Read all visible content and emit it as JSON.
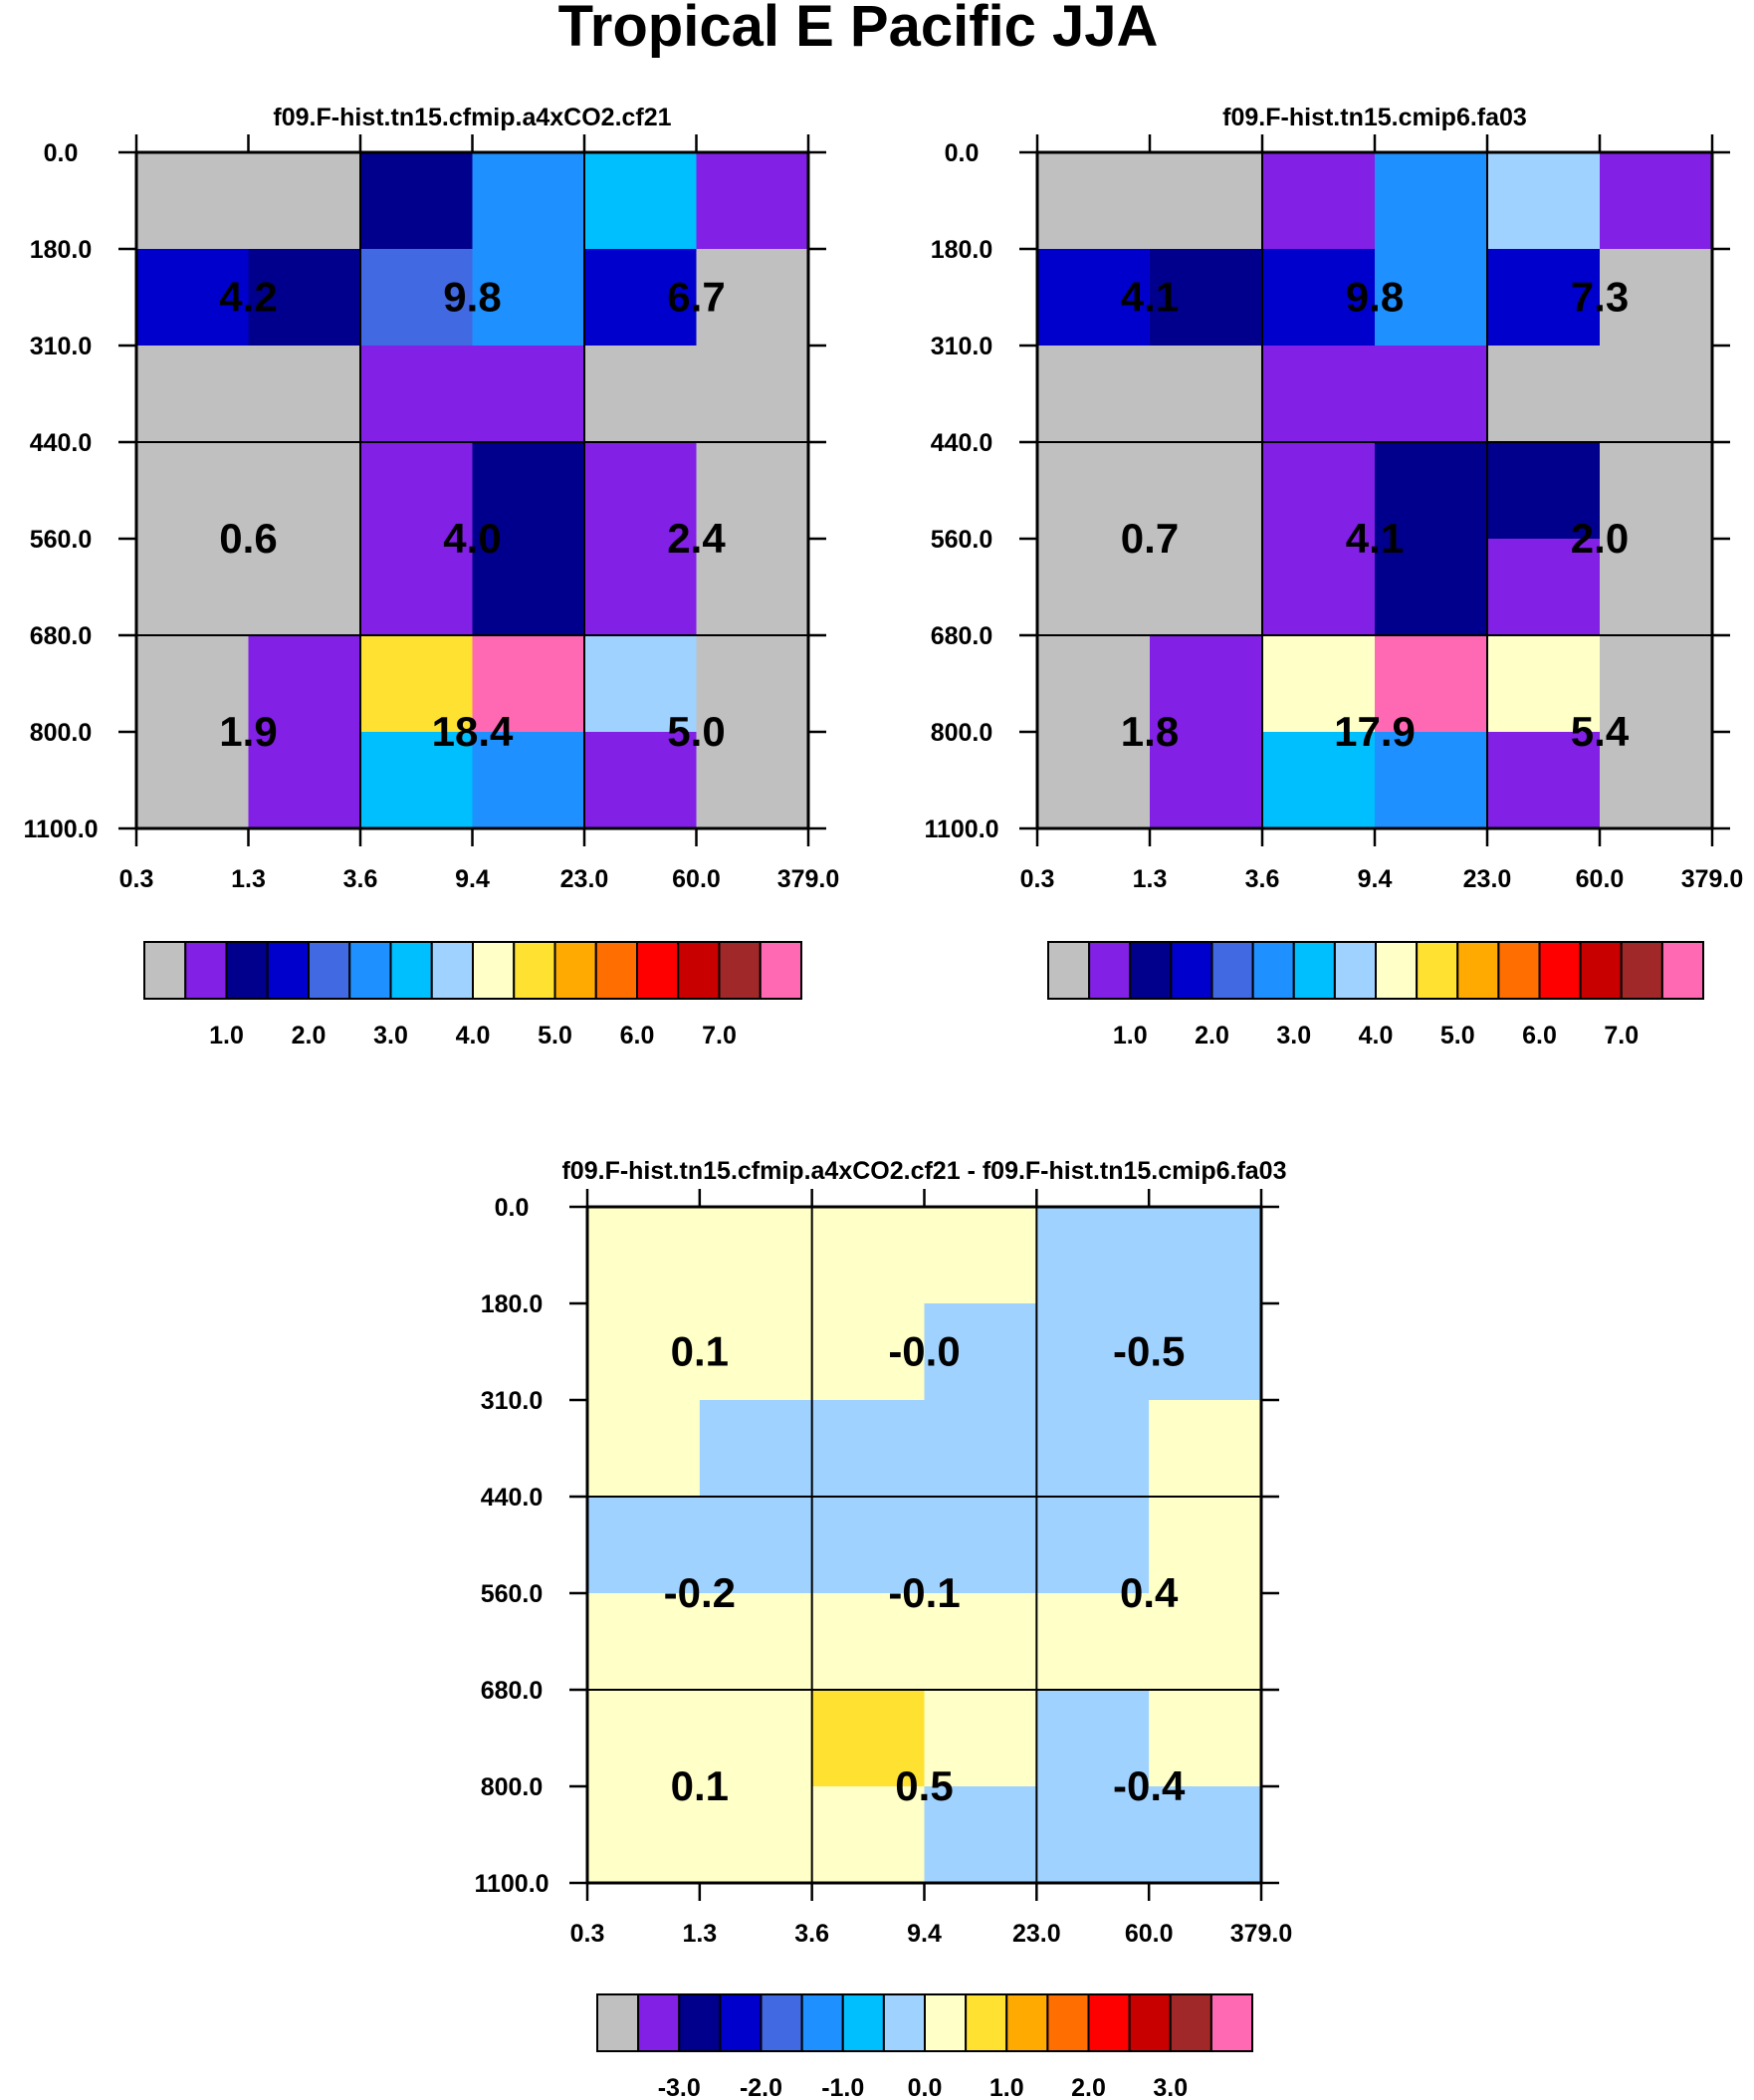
{
  "title": "Tropical E Pacific JJA",
  "colors": {
    "palette": [
      "#c0c0c0",
      "#8220e6",
      "#00008c",
      "#0000cd",
      "#4169e1",
      "#1e90ff",
      "#00bfff",
      "#a0d2ff",
      "#ffffc8",
      "#ffe132",
      "#ffaa00",
      "#ff6e00",
      "#ff0000",
      "#c80000",
      "#a02828",
      "#ff69b4"
    ]
  },
  "chart_data": [
    {
      "type": "heatmap",
      "title": "f09.F-hist.tn15.cfmip.a4xCO2.cf21",
      "xticks": [
        "0.3",
        "1.3",
        "3.6",
        "9.4",
        "23.0",
        "60.0",
        "379.0"
      ],
      "yticks": [
        "0.0",
        "180.0",
        "310.0",
        "440.0",
        "560.0",
        "680.0",
        "800.0",
        "1100.0"
      ],
      "cells": [
        [
          0,
          0,
          2,
          5,
          6,
          1
        ],
        [
          3,
          2,
          4,
          5,
          3,
          0
        ],
        [
          0,
          0,
          1,
          1,
          0,
          0
        ],
        [
          0,
          0,
          1,
          2,
          1,
          0
        ],
        [
          0,
          0,
          1,
          2,
          1,
          0
        ],
        [
          0,
          1,
          9,
          15,
          7,
          0
        ],
        [
          0,
          1,
          6,
          5,
          1,
          0
        ]
      ],
      "box_labels": [
        "4.2",
        "9.8",
        "6.7",
        "0.6",
        "4.0",
        "2.4",
        "1.9",
        "18.4",
        "5.0"
      ],
      "colorbar_labels": [
        "1.0",
        "2.0",
        "3.0",
        "4.0",
        "5.0",
        "6.0",
        "7.0"
      ]
    },
    {
      "type": "heatmap",
      "title": "f09.F-hist.tn15.cmip6.fa03",
      "xticks": [
        "0.3",
        "1.3",
        "3.6",
        "9.4",
        "23.0",
        "60.0",
        "379.0"
      ],
      "yticks": [
        "0.0",
        "180.0",
        "310.0",
        "440.0",
        "560.0",
        "680.0",
        "800.0",
        "1100.0"
      ],
      "cells": [
        [
          0,
          0,
          1,
          5,
          7,
          1
        ],
        [
          3,
          2,
          3,
          5,
          3,
          0
        ],
        [
          0,
          0,
          1,
          1,
          0,
          0
        ],
        [
          0,
          0,
          1,
          2,
          2,
          0
        ],
        [
          0,
          0,
          1,
          2,
          1,
          0
        ],
        [
          0,
          1,
          8,
          15,
          8,
          0
        ],
        [
          0,
          1,
          6,
          5,
          1,
          0
        ]
      ],
      "box_labels": [
        "4.1",
        "9.8",
        "7.3",
        "0.7",
        "4.1",
        "2.0",
        "1.8",
        "17.9",
        "5.4"
      ],
      "colorbar_labels": [
        "1.0",
        "2.0",
        "3.0",
        "4.0",
        "5.0",
        "6.0",
        "7.0"
      ]
    },
    {
      "type": "heatmap",
      "title": "f09.F-hist.tn15.cfmip.a4xCO2.cf21 - f09.F-hist.tn15.cmip6.fa03",
      "xticks": [
        "0.3",
        "1.3",
        "3.6",
        "9.4",
        "23.0",
        "60.0",
        "379.0"
      ],
      "yticks": [
        "0.0",
        "180.0",
        "310.0",
        "440.0",
        "560.0",
        "680.0",
        "800.0",
        "1100.0"
      ],
      "cells": [
        [
          8,
          8,
          8,
          8,
          7,
          7
        ],
        [
          8,
          8,
          8,
          7,
          7,
          7
        ],
        [
          8,
          7,
          7,
          7,
          7,
          8
        ],
        [
          7,
          7,
          7,
          7,
          7,
          8
        ],
        [
          8,
          8,
          8,
          8,
          8,
          8
        ],
        [
          8,
          8,
          9,
          8,
          7,
          8
        ],
        [
          8,
          8,
          8,
          7,
          7,
          7
        ]
      ],
      "box_labels": [
        "0.1",
        "-0.0",
        "-0.5",
        "-0.2",
        "-0.1",
        "0.4",
        "0.1",
        "0.5",
        "-0.4"
      ],
      "colorbar_labels": [
        "-3.0",
        "-2.0",
        "-1.0",
        "0.0",
        "1.0",
        "2.0",
        "3.0"
      ]
    }
  ]
}
